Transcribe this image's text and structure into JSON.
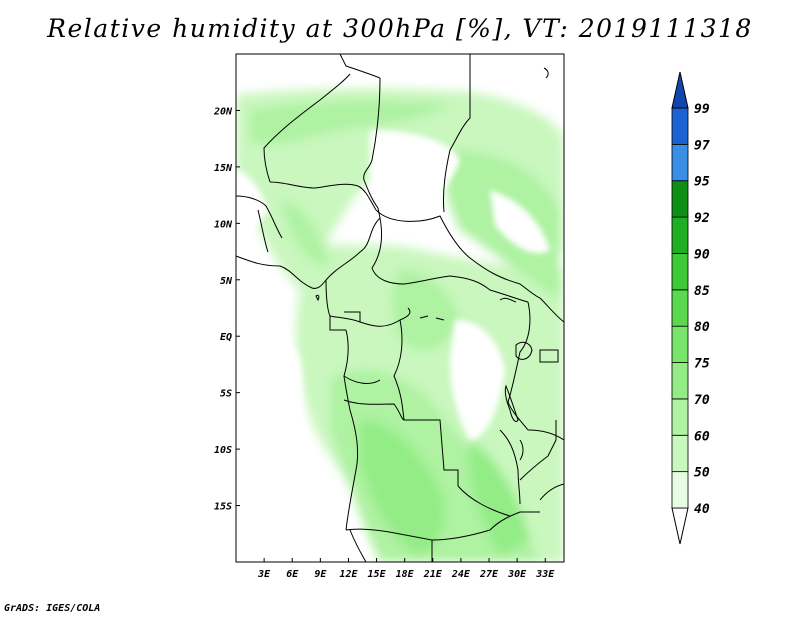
{
  "title": "Relative humidity at 300hPa [%], VT: 2019111318",
  "credit": "GrADS: IGES/COLA",
  "map": {
    "lon_range": [
      0,
      35
    ],
    "lat_range": [
      -20,
      25
    ],
    "x_ticks": [
      "3E",
      "6E",
      "9E",
      "12E",
      "15E",
      "18E",
      "21E",
      "24E",
      "27E",
      "30E",
      "33E"
    ],
    "x_tick_values": [
      3,
      6,
      9,
      12,
      15,
      18,
      21,
      24,
      27,
      30,
      33
    ],
    "y_ticks": [
      "20N",
      "15N",
      "10N",
      "5N",
      "EQ",
      "5S",
      "10S",
      "15S"
    ],
    "y_tick_values": [
      20,
      15,
      10,
      5,
      0,
      -5,
      -10,
      -15
    ]
  },
  "legend": {
    "levels": [
      "40",
      "50",
      "60",
      "70",
      "75",
      "80",
      "85",
      "90",
      "92",
      "95",
      "97",
      "99"
    ],
    "colors": [
      "#ffffff",
      "#e8fce3",
      "#c9f7be",
      "#aef2a2",
      "#93ec85",
      "#78e46a",
      "#5ad94e",
      "#3dc838",
      "#1fae22",
      "#0f8e15",
      "#3a8ee6",
      "#1b62d4",
      "#1146b0"
    ]
  }
}
